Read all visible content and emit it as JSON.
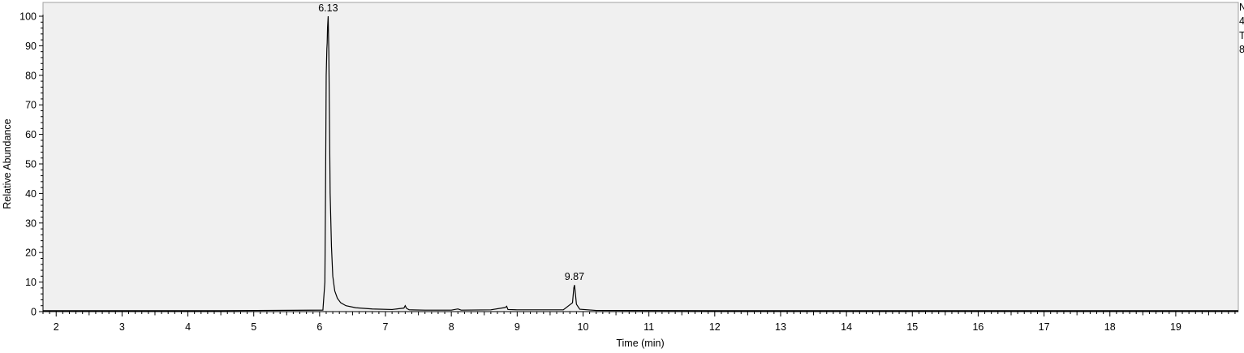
{
  "chart_data": {
    "type": "line",
    "xlabel": "Time (min)",
    "ylabel": "Relative Abundance",
    "xlim": [
      1.8,
      19.95
    ],
    "ylim": [
      0,
      100
    ],
    "x_ticks": [
      2,
      3,
      4,
      5,
      6,
      7,
      8,
      9,
      10,
      11,
      12,
      13,
      14,
      15,
      16,
      17,
      18,
      19
    ],
    "y_ticks": [
      0,
      10,
      20,
      30,
      40,
      50,
      60,
      70,
      80,
      90,
      100
    ],
    "grid": false,
    "background_color": "#f0f0f0",
    "line_color": "#000000",
    "series": [
      {
        "x": [
          1.8,
          4.5,
          6.05,
          6.08,
          6.09,
          6.1,
          6.11,
          6.115,
          6.12,
          6.13,
          6.14,
          6.15,
          6.16,
          6.18,
          6.2,
          6.23,
          6.27,
          6.32,
          6.4,
          6.55,
          6.8,
          7.1,
          7.28,
          7.3,
          7.32,
          7.36,
          7.6,
          8.0,
          8.1,
          8.15,
          8.6,
          8.82,
          8.84,
          8.86,
          9.0,
          9.7,
          9.84,
          9.86,
          9.87,
          9.88,
          9.9,
          9.95,
          10.2,
          12.0,
          19.95
        ],
        "y": [
          0.3,
          0.3,
          0.5,
          10,
          40,
          80,
          89,
          91,
          96,
          100,
          88,
          65,
          40,
          22,
          12,
          7,
          4.5,
          3,
          2,
          1.3,
          0.9,
          0.7,
          1.2,
          2.0,
          1.1,
          0.6,
          0.5,
          0.5,
          0.9,
          0.5,
          0.6,
          1.4,
          1.8,
          0.7,
          0.6,
          0.6,
          3,
          8,
          9,
          7,
          2.5,
          0.8,
          0.4,
          0.3,
          0.3
        ]
      }
    ],
    "annotations": [
      {
        "x": 6.13,
        "y": 100,
        "text": "6.13"
      },
      {
        "x": 9.87,
        "y": 9,
        "text": "9.87"
      }
    ]
  },
  "side_info": [
    "N",
    "4",
    "T",
    "8"
  ]
}
